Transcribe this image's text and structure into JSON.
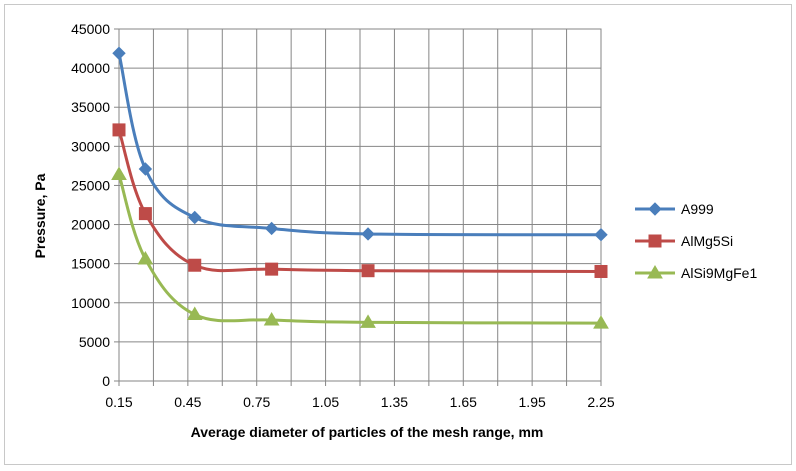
{
  "chart_data": {
    "type": "line",
    "title": "",
    "xlabel": "Average diameter of particles of the mesh range, mm",
    "ylabel": "Pressure, Pa",
    "xlim": [
      0.15,
      2.25
    ],
    "ylim": [
      0,
      45000
    ],
    "x_ticks": [
      "0.15",
      "0.45",
      "0.75",
      "1.05",
      "1.35",
      "1.65",
      "1.95",
      "2.25"
    ],
    "y_ticks": [
      "0",
      "5000",
      "10000",
      "15000",
      "20000",
      "25000",
      "30000",
      "35000",
      "40000",
      "45000"
    ],
    "grid": true,
    "legend_position": "right",
    "series": [
      {
        "name": "A999",
        "color": "#4a7ebb",
        "marker": "diamond",
        "x": [
          0.15,
          0.265,
          0.48,
          0.815,
          1.235,
          2.25
        ],
        "y": [
          41900,
          27100,
          20900,
          19500,
          18800,
          18700
        ]
      },
      {
        "name": "AlMg5Si",
        "color": "#be4b48",
        "marker": "square",
        "x": [
          0.15,
          0.265,
          0.48,
          0.815,
          1.235,
          2.25
        ],
        "y": [
          32100,
          21400,
          14800,
          14300,
          14100,
          14000
        ]
      },
      {
        "name": "AlSi9MgFe1",
        "color": "#98b954",
        "marker": "triangle",
        "x": [
          0.15,
          0.265,
          0.48,
          0.815,
          1.235,
          2.25
        ],
        "y": [
          26400,
          15600,
          8500,
          7800,
          7500,
          7400
        ]
      }
    ]
  }
}
